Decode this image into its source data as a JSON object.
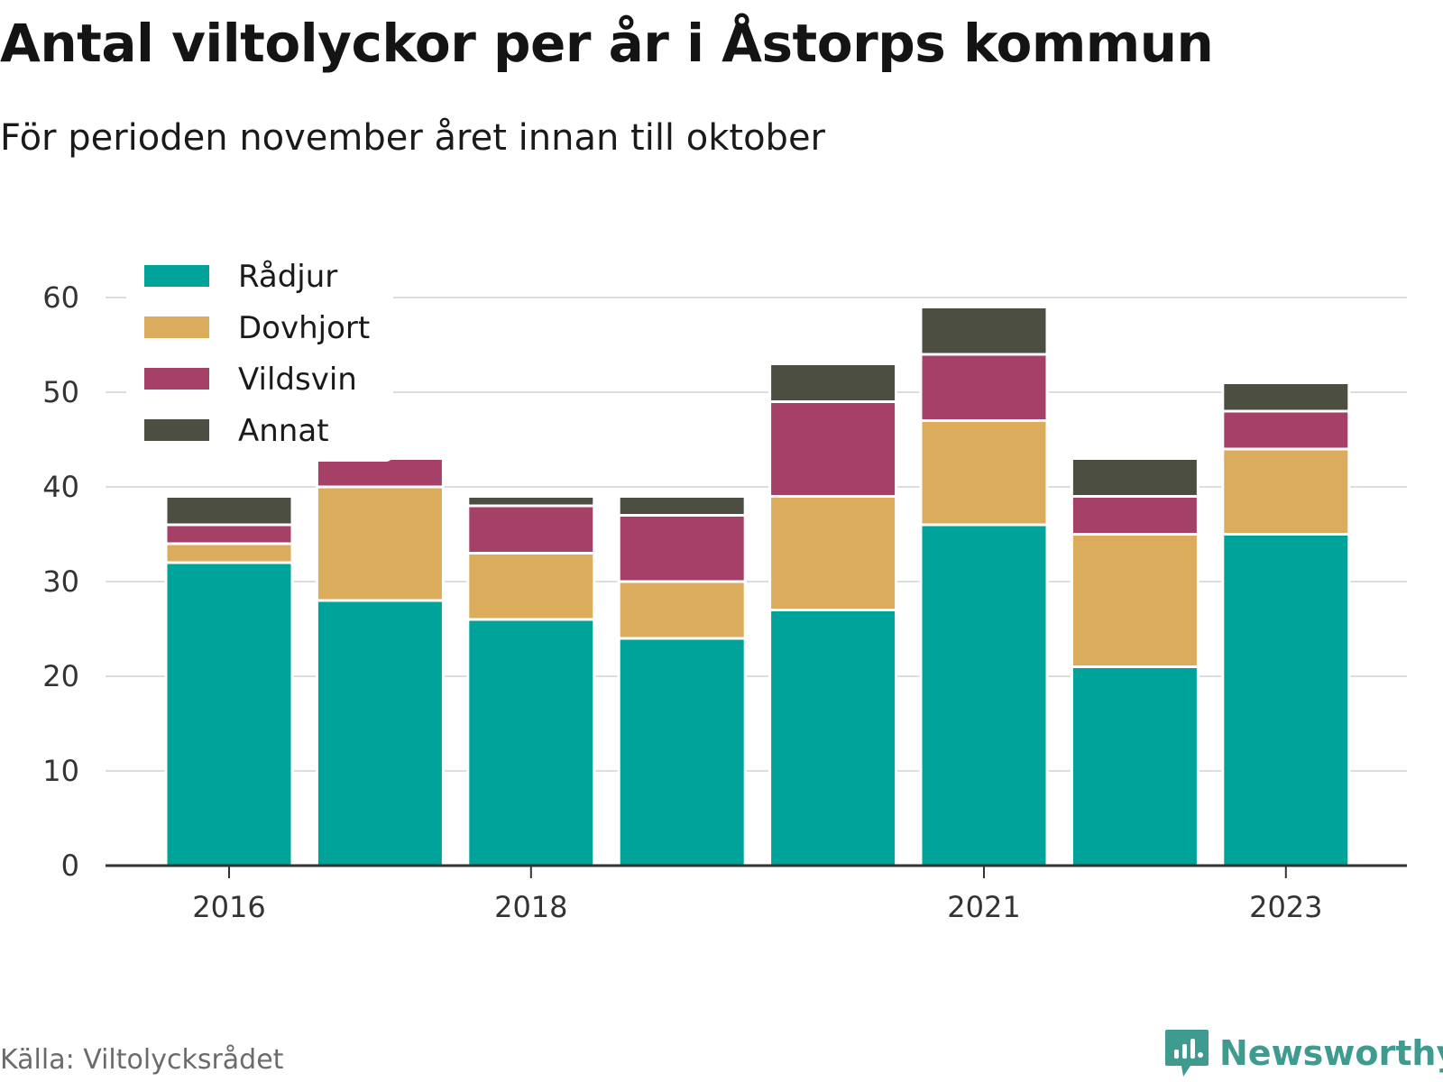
{
  "header": {
    "title": "Antal viltolyckor per år i Åstorps kommun",
    "subtitle": "För perioden november året innan till oktober"
  },
  "footer": {
    "source": "Källa: Viltolycksrådet",
    "brand": "Newsworthy",
    "brand_icon": "newsworthy-logo-icon"
  },
  "colors": {
    "Rådjur": "#00a39a",
    "Dovhjort": "#dbac5c",
    "Vildsvin": "#a54066",
    "Annat": "#4b4e40",
    "grid": "#dddddd",
    "axis": "#333333",
    "brand": "#3f9a8f"
  },
  "chart_data": {
    "type": "bar",
    "stacked": true,
    "categories": [
      "2016",
      "2017",
      "2018",
      "2019",
      "2020",
      "2021",
      "2022",
      "2023"
    ],
    "x_tick_labels": [
      "2016",
      "",
      "2018",
      "",
      "",
      "2021",
      "",
      "2023"
    ],
    "series": [
      {
        "name": "Rådjur",
        "values": [
          32,
          28,
          26,
          24,
          27,
          36,
          21,
          35
        ]
      },
      {
        "name": "Dovhjort",
        "values": [
          2,
          12,
          7,
          6,
          12,
          11,
          14,
          9
        ]
      },
      {
        "name": "Vildsvin",
        "values": [
          2,
          3,
          5,
          7,
          10,
          7,
          4,
          4
        ]
      },
      {
        "name": "Annat",
        "values": [
          3,
          0,
          1,
          2,
          4,
          5,
          4,
          3
        ]
      }
    ],
    "ylim": [
      0,
      60
    ],
    "yticks": [
      0,
      10,
      20,
      30,
      40,
      50,
      60
    ],
    "grid": true,
    "legend_position": "top-left"
  }
}
